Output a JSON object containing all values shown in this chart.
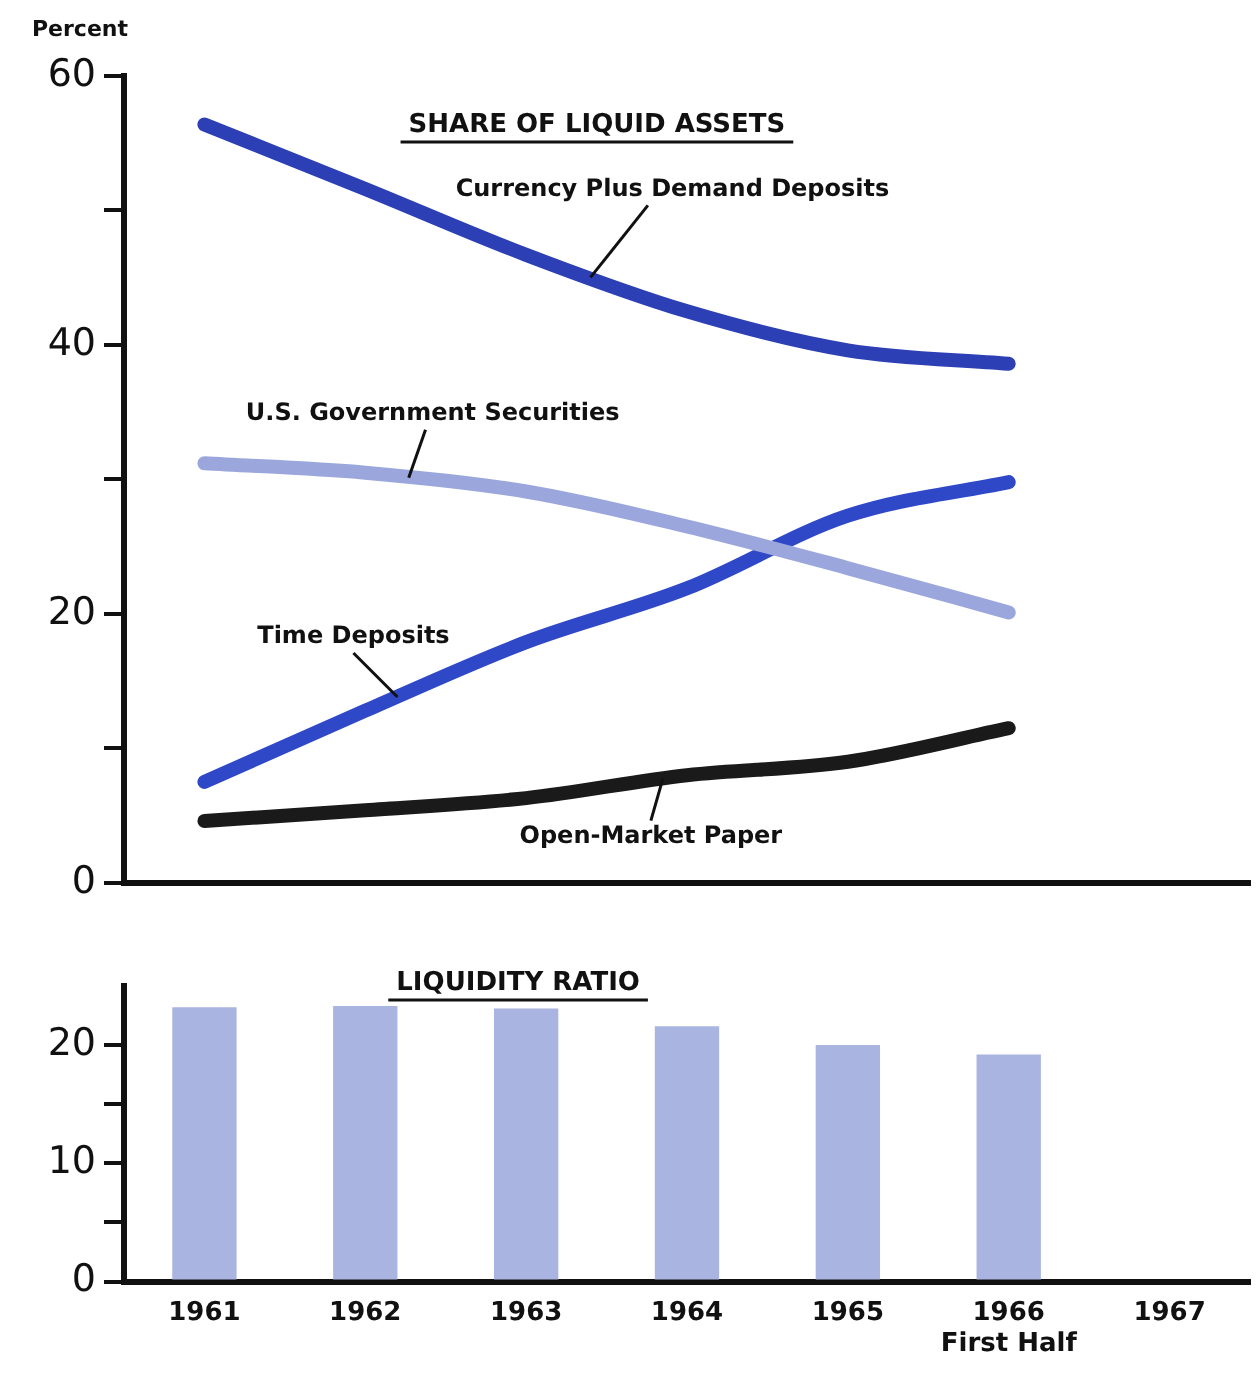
{
  "chart_data": [
    {
      "type": "line",
      "title": "SHARE OF LIQUID ASSETS",
      "ylabel": "Percent",
      "categories": [
        null,
        null,
        null,
        null,
        null,
        null,
        null
      ],
      "marker": "none",
      "ylim": [
        0,
        60
      ],
      "yticks": [
        0,
        {
          "value": 10,
          "label": null
        },
        20,
        {
          "value": 30,
          "label": null
        },
        40,
        {
          "value": 50,
          "label": null
        },
        60
      ],
      "series": [
        {
          "name": "Currency Plus Demand Deposits",
          "color": "#2c3fb5",
          "values": [
            56.4,
            51.6,
            46.7,
            42.5,
            39.6,
            38.6,
            null
          ]
        },
        {
          "name": "U.S. Government Securities",
          "color": "#9ba7dc",
          "values": [
            31.2,
            30.5,
            29.1,
            26.5,
            23.4,
            20.1,
            null
          ]
        },
        {
          "name": "Time Deposits",
          "color": "#2f48c8",
          "values": [
            7.5,
            12.8,
            17.9,
            21.9,
            27.3,
            29.8,
            null
          ]
        },
        {
          "name": "Open-Market Paper",
          "color": "#1a1a1a",
          "values": [
            4.6,
            5.4,
            6.3,
            8.0,
            9.0,
            11.5,
            null
          ]
        }
      ]
    },
    {
      "type": "bar",
      "title": "LIQUIDITY RATIO",
      "categories": [
        "1961",
        "1962",
        "1963",
        "1964",
        "1965",
        "1966\nFirst Half",
        "1967"
      ],
      "values": [
        23.2,
        23.3,
        23.1,
        21.6,
        20.0,
        19.2,
        null
      ],
      "color": "#a9b4e0",
      "ylim": [
        0,
        25
      ],
      "yticks": [
        0,
        {
          "value": 5,
          "label": null
        },
        10,
        {
          "value": 15,
          "label": null
        },
        20
      ]
    }
  ]
}
